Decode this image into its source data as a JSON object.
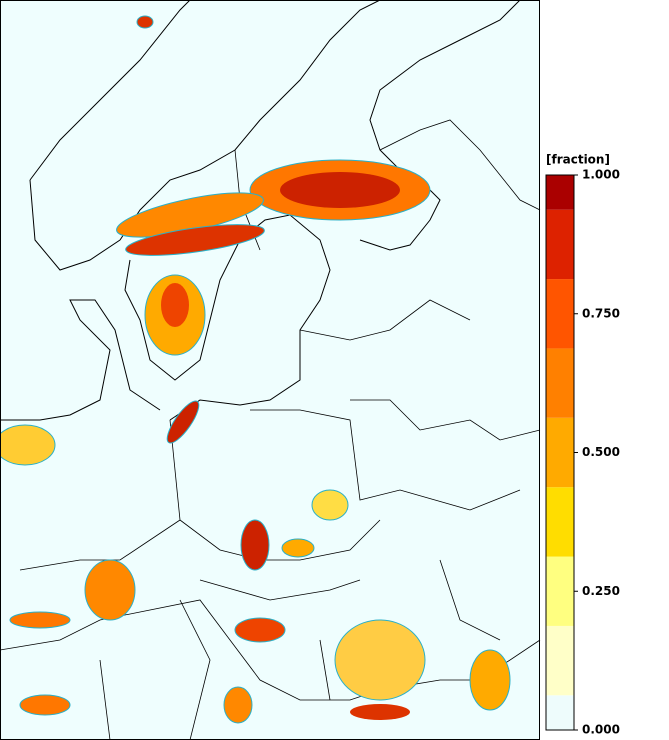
{
  "colorbar": {
    "label": "[fraction]",
    "levels": [
      0,
      0.0625,
      0.1875,
      0.3125,
      0.4375,
      0.5625,
      0.6875,
      0.8125,
      0.9375,
      1
    ],
    "colors": [
      "#eefcfc",
      "#ffffc8",
      "#ffff80",
      "#ffdd00",
      "#ffaa00",
      "#ff8000",
      "#ff5500",
      "#dd2200",
      "#aa0000"
    ],
    "ticks": [
      {
        "value": 1,
        "label": "1.000"
      },
      {
        "value": 0.75,
        "label": "0.750"
      },
      {
        "value": 0.5,
        "label": "0.500"
      },
      {
        "value": 0.25,
        "label": "0.250"
      },
      {
        "value": 0,
        "label": "0.000"
      }
    ]
  }
}
